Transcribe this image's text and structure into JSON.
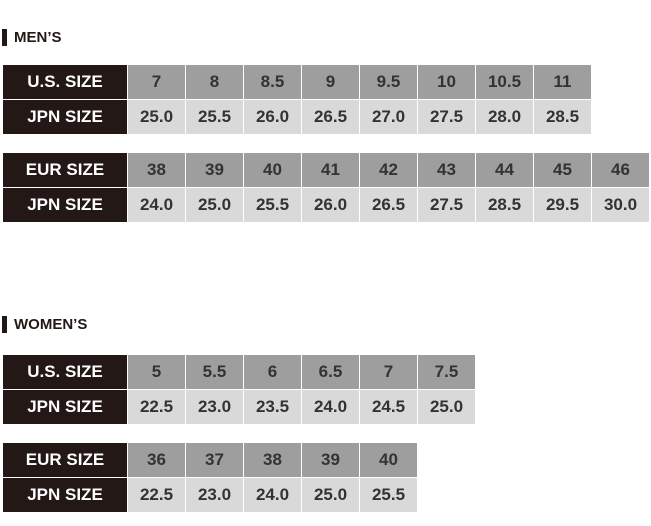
{
  "mens": {
    "title": "MEN’S",
    "us_table": {
      "row1_label": "U.S. SIZE",
      "row1": [
        "7",
        "8",
        "8.5",
        "9",
        "9.5",
        "10",
        "10.5",
        "11"
      ],
      "row2_label": "JPN SIZE",
      "row2": [
        "25.0",
        "25.5",
        "26.0",
        "26.5",
        "27.0",
        "27.5",
        "28.0",
        "28.5"
      ]
    },
    "eur_table": {
      "row1_label": "EUR SIZE",
      "row1": [
        "38",
        "39",
        "40",
        "41",
        "42",
        "43",
        "44",
        "45",
        "46"
      ],
      "row2_label": "JPN SIZE",
      "row2": [
        "24.0",
        "25.0",
        "25.5",
        "26.0",
        "26.5",
        "27.5",
        "28.5",
        "29.5",
        "30.0"
      ]
    }
  },
  "womens": {
    "title": "WOMEN’S",
    "us_table": {
      "row1_label": "U.S. SIZE",
      "row1": [
        "5",
        "5.5",
        "6",
        "6.5",
        "7",
        "7.5"
      ],
      "row2_label": "JPN SIZE",
      "row2": [
        "22.5",
        "23.0",
        "23.5",
        "24.0",
        "24.5",
        "25.0"
      ]
    },
    "eur_table": {
      "row1_label": "EUR SIZE",
      "row1": [
        "36",
        "37",
        "38",
        "39",
        "40"
      ],
      "row2_label": "JPN SIZE",
      "row2": [
        "22.5",
        "23.0",
        "24.0",
        "25.0",
        "25.5"
      ]
    }
  },
  "colors": {
    "label_bg": "#231815",
    "size_row_bg": "#9e9e9e",
    "jpn_row_bg": "#d9d9d9"
  }
}
